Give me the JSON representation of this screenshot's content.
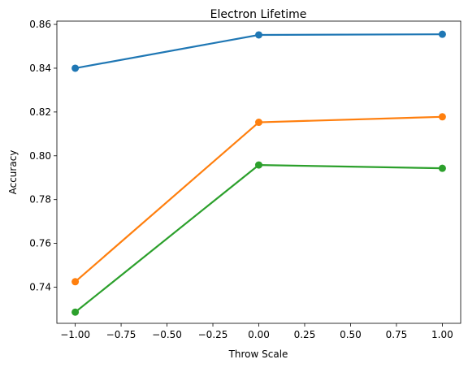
{
  "chart_data": {
    "type": "line",
    "title": "Electron Lifetime",
    "xlabel": "Throw Scale",
    "ylabel": "Accuracy",
    "x": [
      -1.0,
      0.0,
      1.0
    ],
    "xlim": [
      -1.1,
      1.1
    ],
    "ylim": [
      0.7235,
      0.8615
    ],
    "xticks": [
      -1.0,
      -0.75,
      -0.5,
      -0.25,
      0.0,
      0.25,
      0.5,
      0.75,
      1.0
    ],
    "xtick_labels": [
      "−1.00",
      "−0.75",
      "−0.50",
      "−0.25",
      "0.00",
      "0.25",
      "0.50",
      "0.75",
      "1.00"
    ],
    "yticks": [
      0.74,
      0.76,
      0.78,
      0.8,
      0.82,
      0.84,
      0.86
    ],
    "ytick_labels": [
      "0.74",
      "0.76",
      "0.78",
      "0.80",
      "0.82",
      "0.84",
      "0.86"
    ],
    "grid": false,
    "legend": "none",
    "series": [
      {
        "values": [
          0.84,
          0.8552,
          0.8555
        ],
        "color": "#1f77b4"
      },
      {
        "values": [
          0.7425,
          0.8153,
          0.8178
        ],
        "color": "#ff7f0e"
      },
      {
        "values": [
          0.7286,
          0.7958,
          0.7943
        ],
        "color": "#2ca02c"
      }
    ]
  }
}
